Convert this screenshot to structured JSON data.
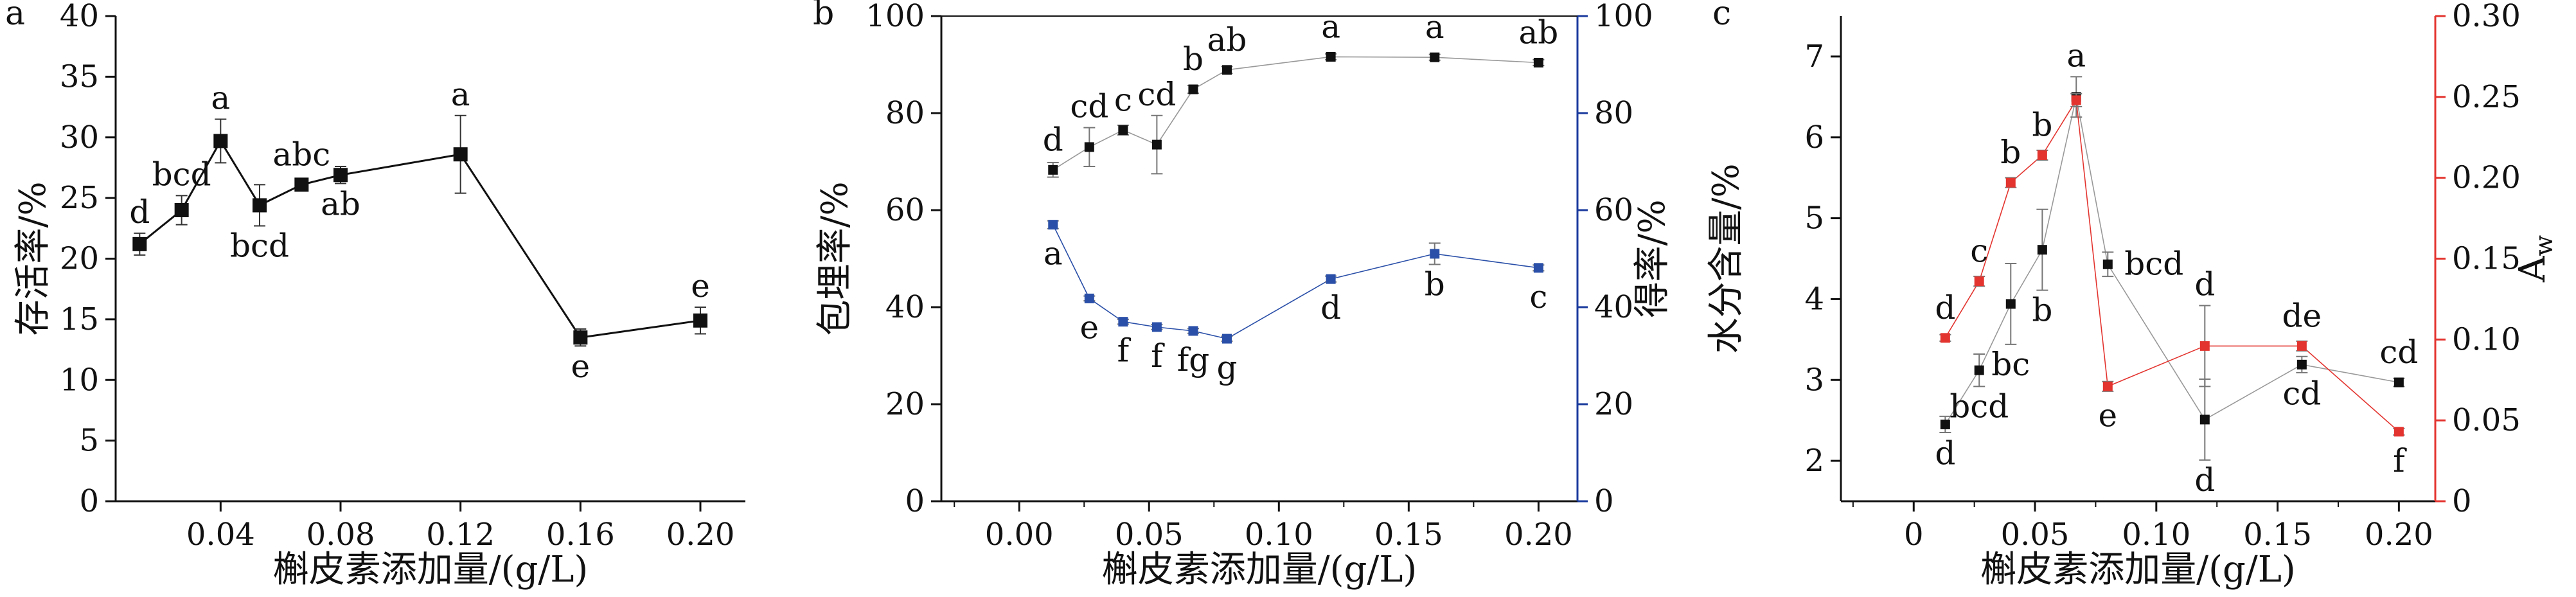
{
  "chart_data": [
    {
      "panel": "a",
      "type": "line",
      "xlabel": "槲皮素添加量/(g/L)",
      "ylabel": "存活率/%",
      "xlim": [
        0.005,
        0.215
      ],
      "ylim": [
        0,
        40
      ],
      "xticks": [
        0.04,
        0.08,
        0.12,
        0.16,
        0.2
      ],
      "xtick_labels": [
        "0.04",
        "0.08",
        "0.12",
        "0.16",
        "0.20"
      ],
      "yticks": [
        0,
        5,
        10,
        15,
        20,
        25,
        30,
        35,
        40
      ],
      "ytick_labels": [
        "0",
        "5",
        "10",
        "15",
        "20",
        "25",
        "30",
        "35",
        "40"
      ],
      "color": "#111111",
      "series": [
        {
          "x": [
            0.013,
            0.027,
            0.04,
            0.053,
            0.067,
            0.08,
            0.12,
            0.16,
            0.2
          ],
          "y": [
            21.2,
            24.0,
            29.7,
            24.4,
            26.1,
            26.9,
            28.6,
            13.5,
            14.9
          ],
          "err": [
            0.9,
            1.2,
            1.8,
            1.7,
            0.5,
            0.7,
            3.2,
            0.7,
            1.1
          ],
          "sig": [
            "d",
            "bcd",
            "a",
            "bcd",
            "abc",
            "ab",
            "a",
            "e",
            "e"
          ],
          "sig_pos": [
            "above",
            "above",
            "above",
            "below",
            "above",
            "below",
            "above",
            "below",
            "above"
          ]
        }
      ]
    },
    {
      "panel": "b",
      "type": "line",
      "xlabel": "槲皮素添加量/(g/L)",
      "ylabel": "包埋率/%",
      "ylabel_right": "得率/%",
      "xlim": [
        -0.03,
        0.215
      ],
      "ylim": [
        0,
        100
      ],
      "ylim_right": [
        0,
        100
      ],
      "xticks": [
        0.0,
        0.05,
        0.1,
        0.15,
        0.2
      ],
      "xtick_labels": [
        "0.00",
        "0.05",
        "0.10",
        "0.15",
        "0.20"
      ],
      "yticks": [
        0,
        20,
        40,
        60,
        80,
        100
      ],
      "ytick_labels": [
        "0",
        "20",
        "40",
        "60",
        "80",
        "100"
      ],
      "yticks_right": [
        0,
        20,
        40,
        60,
        80,
        100
      ],
      "ytick_labels_right": [
        "0",
        "20",
        "40",
        "60",
        "80",
        "100"
      ],
      "right_axis_color": "#1a3a9c",
      "series": [
        {
          "axis": "left",
          "color": "#111111",
          "x": [
            0.013,
            0.027,
            0.04,
            0.053,
            0.067,
            0.08,
            0.12,
            0.16,
            0.2
          ],
          "y": [
            68.3,
            73.0,
            76.5,
            73.5,
            84.9,
            88.9,
            91.6,
            91.5,
            90.4
          ],
          "err": [
            1.5,
            4.0,
            1.0,
            6.0,
            0.8,
            0.7,
            0.6,
            0.6,
            0.6
          ],
          "sig": [
            "d",
            "cd",
            "c",
            "cd",
            "b",
            "ab",
            "a",
            "a",
            "ab"
          ],
          "sig_pos": [
            "above",
            "above",
            "above",
            "above",
            "above",
            "above",
            "above",
            "above",
            "above"
          ]
        },
        {
          "axis": "right",
          "color": "#2a4fa8",
          "x": [
            0.013,
            0.027,
            0.04,
            0.053,
            0.067,
            0.08,
            0.12,
            0.16,
            0.2
          ],
          "y": [
            57.0,
            41.8,
            37.0,
            35.9,
            35.1,
            33.5,
            45.8,
            51.0,
            48.1
          ],
          "err": [
            0.8,
            0.5,
            0.5,
            0.5,
            0.5,
            0.5,
            0.6,
            2.2,
            0.6
          ],
          "sig": [
            "a",
            "e",
            "f",
            "f",
            "fg",
            "g",
            "d",
            "b",
            "c"
          ],
          "sig_pos": [
            "below",
            "below",
            "below",
            "below",
            "below",
            "below",
            "below",
            "below",
            "below"
          ]
        }
      ]
    },
    {
      "panel": "c",
      "type": "line",
      "xlabel": "槲皮素添加量/(g/L)",
      "ylabel": "水分含量/%",
      "ylabel_right": "A",
      "ylabel_right_sub": "w",
      "xlim": [
        -0.03,
        0.215
      ],
      "ylim": [
        1.5,
        7.5
      ],
      "ylim_right": [
        0,
        0.3
      ],
      "xticks": [
        0,
        0.05,
        0.1,
        0.15,
        0.2
      ],
      "xtick_labels": [
        "0",
        "0.05",
        "0.10",
        "0.15",
        "0.20"
      ],
      "yticks": [
        2,
        3,
        4,
        5,
        6,
        7
      ],
      "ytick_labels": [
        "2",
        "3",
        "4",
        "5",
        "6",
        "7"
      ],
      "yticks_right": [
        0,
        0.05,
        0.1,
        0.15,
        0.2,
        0.25,
        0.3
      ],
      "ytick_labels_right": [
        "0",
        "0.05",
        "0.10",
        "0.15",
        "0.20",
        "0.25",
        "0.30"
      ],
      "right_axis_color": "#e3342f",
      "series": [
        {
          "axis": "left",
          "color": "#111111",
          "x": [
            0.013,
            0.027,
            0.04,
            0.053,
            0.067,
            0.08,
            0.12,
            0.16,
            0.2
          ],
          "y": [
            2.45,
            3.12,
            3.94,
            4.61,
            6.5,
            4.43,
            2.51,
            3.19,
            2.97
          ],
          "err": [
            0.1,
            0.2,
            0.5,
            0.5,
            0.25,
            0.15,
            0.5,
            0.1,
            0.05
          ],
          "sig": [
            "d",
            "bcd",
            "bc",
            "b",
            "a",
            "bcd",
            "d",
            "cd",
            "cd"
          ],
          "sig_pos": [
            "below",
            "below",
            "below",
            "below",
            "above",
            "right",
            "below",
            "below",
            "above"
          ]
        },
        {
          "axis": "right",
          "color": "#e3342f",
          "x": [
            0.013,
            0.027,
            0.04,
            0.053,
            0.067,
            0.08,
            0.12,
            0.16,
            0.2
          ],
          "y": [
            0.101,
            0.136,
            0.197,
            0.214,
            0.248,
            0.071,
            0.096,
            0.096,
            0.043
          ],
          "err": [
            0.002,
            0.003,
            0.003,
            0.003,
            0.004,
            0.003,
            0.025,
            0.003,
            0.002
          ],
          "sig": [
            "d",
            "c",
            "b",
            "b",
            "",
            "e",
            "d",
            "de",
            "f"
          ],
          "sig_pos": [
            "above",
            "above",
            "above",
            "above",
            "above",
            "below",
            "above",
            "above",
            "below"
          ]
        }
      ]
    }
  ]
}
